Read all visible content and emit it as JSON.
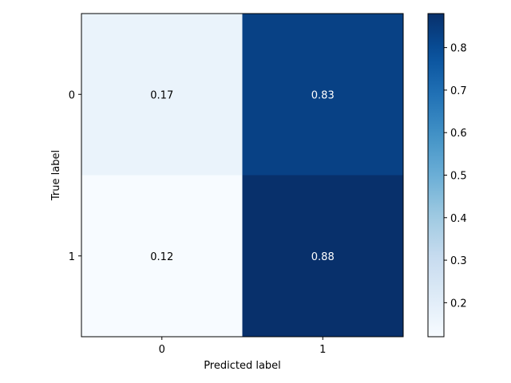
{
  "chart_data": {
    "type": "heatmap",
    "title": "",
    "xlabel": "Predicted label",
    "ylabel": "True label",
    "x_categories": [
      "0",
      "1"
    ],
    "y_categories": [
      "0",
      "1"
    ],
    "values": [
      [
        0.17,
        0.83
      ],
      [
        0.12,
        0.88
      ]
    ],
    "cell_labels": [
      [
        "0.17",
        "0.83"
      ],
      [
        "0.12",
        "0.88"
      ]
    ],
    "colormap": "Blues",
    "colorbar": {
      "range": [
        0.12,
        0.88
      ],
      "ticks": [
        0.2,
        0.3,
        0.4,
        0.5,
        0.6,
        0.7,
        0.8
      ],
      "tick_labels": [
        "0.2",
        "0.3",
        "0.4",
        "0.5",
        "0.6",
        "0.7",
        "0.8"
      ]
    },
    "grid": false
  }
}
